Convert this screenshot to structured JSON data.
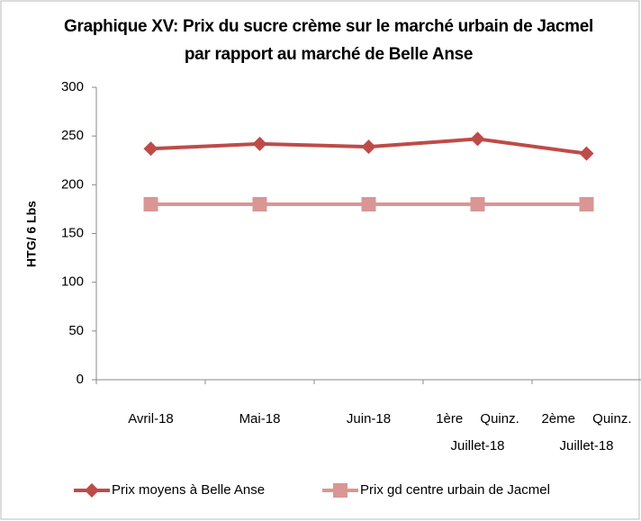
{
  "chart_data": {
    "type": "line",
    "title": "Graphique XV: Prix du sucre crème sur le marché urbain de Jacmel par rapport au marché de Belle Anse",
    "y_label": "HTG/ 6 Lbs",
    "categories": [
      "Avril-18",
      "Mai-18",
      "Juin-18",
      "1ère Quinz. Juillet-18",
      "2ème Quinz. Juillet-18"
    ],
    "series": [
      {
        "name": "Prix moyens à Belle Anse",
        "color": "#be4b48",
        "marker": "diamond",
        "values": [
          237,
          242,
          239,
          247,
          232
        ]
      },
      {
        "name": "Prix gd centre urbain de Jacmel",
        "color": "#d99694",
        "marker": "square",
        "values": [
          180,
          180,
          180,
          180,
          180
        ]
      }
    ],
    "ylim": [
      0,
      300
    ],
    "yticks": [
      0,
      50,
      100,
      150,
      200,
      250,
      300
    ],
    "grid": false,
    "legend": "bottom"
  }
}
